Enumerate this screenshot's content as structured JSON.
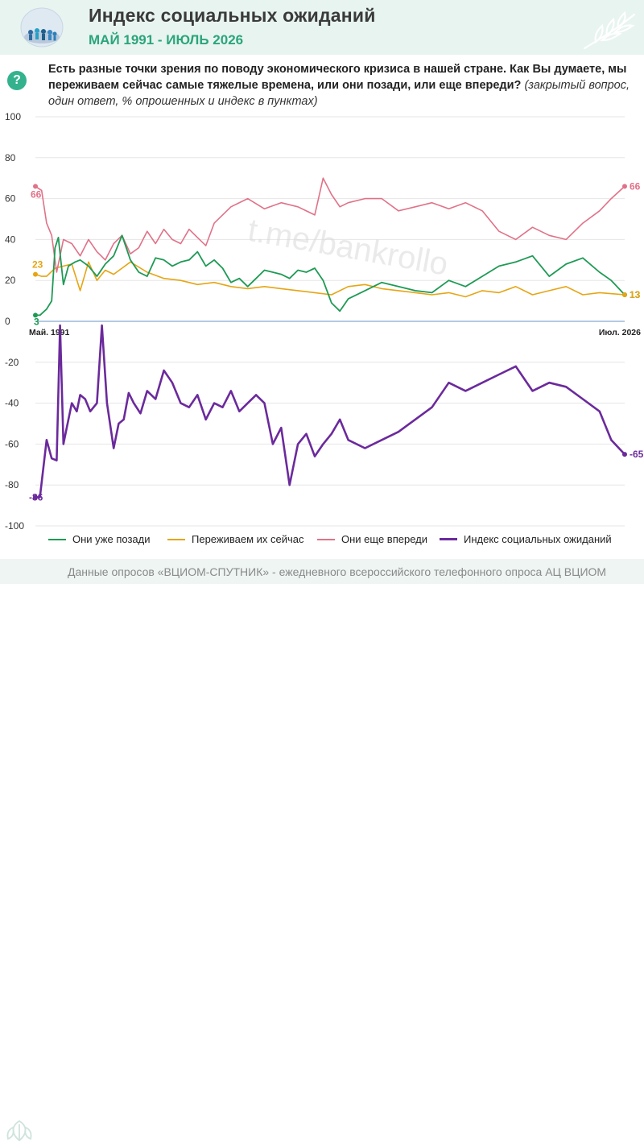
{
  "header": {
    "title": "Индекс социальных ожиданий",
    "subtitle": "МАЙ 1991 - ИЮЛЬ 2026"
  },
  "question": {
    "main": "Есть разные точки зрения по поводу экономического кризиса в нашей стране. Как Вы думаете, мы переживаем сейчас самые тяжелые времена, или они позади, или еще впереди?",
    "note": "(закрытый вопрос, один ответ, % опрошенных и индекс в пунктах)"
  },
  "watermark": "t.me/bankrollo",
  "footer": {
    "text": "Данные опросов «ВЦИОМ-СПУТНИК» - ежедневного всероссийского телефонного опроса АЦ ВЦИОМ"
  },
  "colors": {
    "behind": "#1e9a55",
    "now": "#e6a514",
    "ahead": "#e07288",
    "index": "#6b2a9c",
    "axis": "#9bb8d8",
    "grid": "#e6e6e6",
    "brand": "#2aa57a"
  },
  "chart_data": {
    "type": "line",
    "x_start_label": "Май. 1991",
    "x_end_label": "Июл. 2026",
    "x_range": [
      1991.33,
      2026.5
    ],
    "y_ticks": [
      {
        "value": 100,
        "label": "100"
      },
      {
        "value": 80,
        "label": "80"
      },
      {
        "value": 60,
        "label": "60"
      },
      {
        "value": 40,
        "label": "40"
      },
      {
        "value": 20,
        "label": "20"
      },
      {
        "value": 0,
        "label": "0"
      },
      {
        "value": -20,
        "label": "-20"
      },
      {
        "value": -40,
        "label": "-40"
      },
      {
        "value": -60,
        "label": "-60"
      },
      {
        "value": -80,
        "label": "-80"
      },
      {
        "value": -100,
        "label": "-100"
      }
    ],
    "ylim": [
      -100,
      100
    ],
    "grid": true,
    "legend_position": "bottom",
    "series": [
      {
        "key": "behind",
        "name": "Они уже позади",
        "start_label": "3",
        "end_label": "13",
        "x": [
          1991.33,
          1991.6,
          1992.0,
          1992.3,
          1992.5,
          1992.7,
          1993.0,
          1993.3,
          1993.7,
          1994.0,
          1994.5,
          1995.0,
          1995.5,
          1996.0,
          1996.5,
          1997.0,
          1997.5,
          1998.0,
          1998.5,
          1999.0,
          1999.5,
          2000.0,
          2000.5,
          2001.0,
          2001.5,
          2002.0,
          2002.5,
          2003.0,
          2003.5,
          2004.0,
          2004.5,
          2005.0,
          2005.5,
          2006.0,
          2006.5,
          2007.0,
          2007.5,
          2008.0,
          2008.5,
          2009.0,
          2009.5,
          2010.0,
          2011.0,
          2012.0,
          2013.0,
          2014.0,
          2015.0,
          2016.0,
          2017.0,
          2018.0,
          2019.0,
          2020.0,
          2021.0,
          2022.0,
          2023.0,
          2024.0,
          2025.0,
          2025.7,
          2026.5
        ],
        "values": [
          3,
          3,
          6,
          10,
          36,
          41,
          18,
          27,
          29,
          30,
          27,
          22,
          28,
          32,
          42,
          30,
          24,
          22,
          31,
          30,
          27,
          29,
          30,
          34,
          27,
          30,
          26,
          19,
          21,
          17,
          21,
          25,
          24,
          23,
          21,
          25,
          24,
          26,
          20,
          9,
          5,
          11,
          15,
          19,
          17,
          15,
          14,
          20,
          17,
          22,
          27,
          29,
          32,
          22,
          28,
          31,
          24,
          20,
          13
        ]
      },
      {
        "key": "now",
        "name": "Переживаем их сейчас",
        "start_label": "23",
        "end_label": "13",
        "x": [
          1991.33,
          1991.7,
          1992.0,
          1992.5,
          1993.0,
          1993.5,
          1994.0,
          1994.5,
          1995.0,
          1995.5,
          1996.0,
          1996.5,
          1997.0,
          1998.0,
          1999.0,
          2000.0,
          2001.0,
          2002.0,
          2003.0,
          2004.0,
          2005.0,
          2006.0,
          2007.0,
          2008.0,
          2009.0,
          2010.0,
          2011.0,
          2012.0,
          2013.0,
          2014.0,
          2015.0,
          2016.0,
          2017.0,
          2018.0,
          2019.0,
          2020.0,
          2021.0,
          2022.0,
          2023.0,
          2024.0,
          2025.0,
          2026.5
        ],
        "values": [
          23,
          22,
          22,
          26,
          27,
          28,
          15,
          29,
          20,
          25,
          23,
          26,
          29,
          24,
          21,
          20,
          18,
          19,
          17,
          16,
          17,
          16,
          15,
          14,
          13,
          17,
          18,
          16,
          15,
          14,
          13,
          14,
          12,
          15,
          14,
          17,
          13,
          15,
          17,
          13,
          14,
          13
        ]
      },
      {
        "key": "ahead",
        "name": "Они еще впереди",
        "start_label": "66",
        "end_label": "66",
        "x": [
          1991.33,
          1991.7,
          1992.0,
          1992.3,
          1992.6,
          1993.0,
          1993.5,
          1994.0,
          1994.5,
          1995.0,
          1995.5,
          1996.0,
          1996.5,
          1997.0,
          1997.5,
          1998.0,
          1998.5,
          1999.0,
          1999.5,
          2000.0,
          2000.5,
          2001.0,
          2001.5,
          2002.0,
          2003.0,
          2004.0,
          2005.0,
          2006.0,
          2007.0,
          2008.0,
          2008.5,
          2009.0,
          2009.5,
          2010.0,
          2011.0,
          2012.0,
          2013.0,
          2014.0,
          2015.0,
          2016.0,
          2017.0,
          2018.0,
          2019.0,
          2020.0,
          2021.0,
          2022.0,
          2023.0,
          2024.0,
          2025.0,
          2025.7,
          2026.5
        ],
        "values": [
          66,
          64,
          48,
          42,
          24,
          40,
          38,
          32,
          40,
          34,
          30,
          38,
          42,
          33,
          36,
          44,
          38,
          45,
          40,
          38,
          45,
          41,
          37,
          48,
          56,
          60,
          55,
          58,
          56,
          52,
          70,
          62,
          56,
          58,
          60,
          60,
          54,
          56,
          58,
          55,
          58,
          54,
          44,
          40,
          46,
          42,
          40,
          48,
          54,
          60,
          66
        ]
      },
      {
        "key": "index",
        "name": "Индекс социальных ожиданий",
        "start_label": "-86",
        "end_label": "-65",
        "x": [
          1991.33,
          1991.6,
          1992.0,
          1992.3,
          1992.6,
          1992.8,
          1993.0,
          1993.2,
          1993.5,
          1993.8,
          1994.0,
          1994.3,
          1994.6,
          1995.0,
          1995.3,
          1995.6,
          1996.0,
          1996.3,
          1996.6,
          1996.9,
          1997.2,
          1997.6,
          1998.0,
          1998.5,
          1999.0,
          1999.5,
          2000.0,
          2000.5,
          2001.0,
          2001.5,
          2002.0,
          2002.5,
          2003.0,
          2003.5,
          2004.0,
          2004.5,
          2005.0,
          2005.5,
          2006.0,
          2006.5,
          2007.0,
          2007.5,
          2008.0,
          2008.5,
          2009.0,
          2009.5,
          2010.0,
          2011.0,
          2012.0,
          2013.0,
          2014.0,
          2015.0,
          2016.0,
          2017.0,
          2018.0,
          2019.0,
          2020.0,
          2021.0,
          2022.0,
          2023.0,
          2024.0,
          2025.0,
          2025.7,
          2026.5
        ],
        "values": [
          -86,
          -86,
          -58,
          -67,
          -68,
          -2,
          -60,
          -52,
          -40,
          -44,
          -36,
          -38,
          -44,
          -40,
          -2,
          -40,
          -62,
          -50,
          -48,
          -35,
          -40,
          -45,
          -34,
          -38,
          -24,
          -30,
          -40,
          -42,
          -36,
          -48,
          -40,
          -42,
          -34,
          -44,
          -40,
          -36,
          -40,
          -60,
          -52,
          -80,
          -60,
          -55,
          -66,
          -60,
          -55,
          -48,
          -58,
          -62,
          -58,
          -54,
          -48,
          -42,
          -30,
          -34,
          -30,
          -26,
          -22,
          -34,
          -30,
          -32,
          -38,
          -44,
          -58,
          -65
        ]
      }
    ]
  }
}
